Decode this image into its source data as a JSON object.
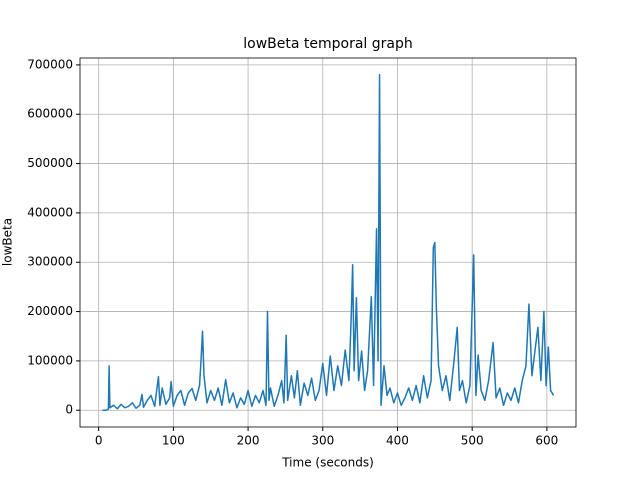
{
  "chart_data": {
    "type": "line",
    "title": "lowBeta temporal graph",
    "xlabel": "Time (seconds)",
    "ylabel": "lowBeta",
    "color": "#1f77b4",
    "grid": true,
    "xlim": [
      -25,
      639
    ],
    "ylim": [
      -34000,
      714000
    ],
    "xticks": [
      0,
      100,
      200,
      300,
      400,
      500,
      600
    ],
    "yticks": [
      0,
      100000,
      200000,
      300000,
      400000,
      500000,
      600000,
      700000
    ],
    "x": [
      5,
      10,
      13,
      14,
      15,
      20,
      25,
      30,
      35,
      40,
      45,
      50,
      55,
      58,
      60,
      65,
      70,
      75,
      80,
      82,
      85,
      90,
      95,
      97,
      100,
      105,
      110,
      115,
      120,
      125,
      130,
      135,
      137,
      139,
      141,
      145,
      150,
      155,
      160,
      165,
      170,
      175,
      180,
      185,
      190,
      195,
      200,
      205,
      210,
      215,
      220,
      224,
      226,
      228,
      230,
      235,
      240,
      245,
      248,
      251,
      253,
      258,
      262,
      266,
      270,
      275,
      280,
      285,
      290,
      295,
      300,
      305,
      310,
      315,
      320,
      325,
      330,
      335,
      338,
      340,
      342,
      345,
      348,
      352,
      356,
      360,
      365,
      368,
      372,
      374,
      376,
      378,
      382,
      386,
      390,
      395,
      400,
      405,
      410,
      415,
      420,
      425,
      430,
      435,
      440,
      445,
      448,
      450,
      452,
      455,
      460,
      465,
      470,
      475,
      480,
      483,
      487,
      492,
      497,
      502,
      505,
      508,
      512,
      517,
      522,
      528,
      532,
      537,
      542,
      547,
      552,
      557,
      562,
      567,
      572,
      576,
      580,
      584,
      588,
      592,
      596,
      599,
      602,
      605,
      609
    ],
    "values": [
      0,
      0,
      2000,
      90000,
      5000,
      10000,
      3000,
      12000,
      5000,
      8000,
      15000,
      4000,
      10000,
      32000,
      6000,
      20000,
      30000,
      8000,
      68000,
      10000,
      45000,
      12000,
      25000,
      58000,
      8000,
      30000,
      40000,
      10000,
      35000,
      44000,
      20000,
      50000,
      100000,
      160000,
      70000,
      15000,
      40000,
      20000,
      45000,
      10000,
      62000,
      15000,
      35000,
      5000,
      25000,
      12000,
      40000,
      8000,
      30000,
      15000,
      40000,
      10000,
      200000,
      20000,
      45000,
      8000,
      30000,
      60000,
      15000,
      152000,
      20000,
      70000,
      25000,
      80000,
      10000,
      55000,
      30000,
      65000,
      20000,
      40000,
      95000,
      30000,
      110000,
      40000,
      90000,
      50000,
      122000,
      60000,
      185000,
      295000,
      80000,
      228000,
      60000,
      120000,
      40000,
      80000,
      230000,
      50000,
      368000,
      100000,
      680000,
      10000,
      90000,
      30000,
      45000,
      15000,
      35000,
      10000,
      25000,
      45000,
      20000,
      50000,
      15000,
      70000,
      25000,
      60000,
      330000,
      340000,
      210000,
      90000,
      40000,
      70000,
      20000,
      90000,
      168000,
      40000,
      60000,
      15000,
      50000,
      315000,
      30000,
      112000,
      40000,
      20000,
      60000,
      137000,
      25000,
      45000,
      10000,
      35000,
      20000,
      45000,
      15000,
      60000,
      90000,
      215000,
      70000,
      120000,
      168000,
      60000,
      200000,
      50000,
      128000,
      40000,
      30000
    ]
  }
}
